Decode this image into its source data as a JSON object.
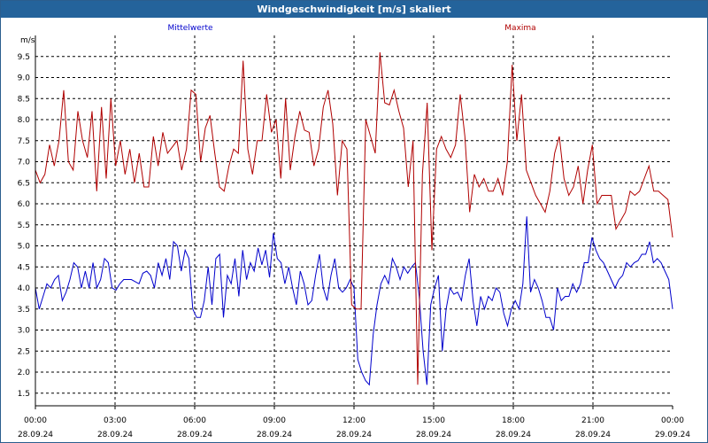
{
  "window": {
    "title": "Windgeschwindigkeit [m/s] skaliert"
  },
  "colors": {
    "titlebar": "#24639b",
    "mittel": "#0000cc",
    "maxima": "#b00000",
    "grid": "#000000"
  },
  "chart_data": {
    "type": "line",
    "title": "Windgeschwindigkeit [m/s] skaliert",
    "ylabel": "m/s",
    "ylim": [
      1.2,
      10.0
    ],
    "yticks": [
      "1.5",
      "2.0",
      "2.5",
      "3.0",
      "3.5",
      "4.0",
      "4.5",
      "5.0",
      "5.5",
      "6.0",
      "6.5",
      "7.0",
      "7.5",
      "8.0",
      "8.5",
      "9.0",
      "9.5"
    ],
    "ytick_values": [
      1.5,
      2.0,
      2.5,
      3.0,
      3.5,
      4.0,
      4.5,
      5.0,
      5.5,
      6.0,
      6.5,
      7.0,
      7.5,
      8.0,
      8.5,
      9.0,
      9.5
    ],
    "xlim_hours": [
      0,
      24
    ],
    "xticks": [
      {
        "hours": 0,
        "time": "00:00",
        "date": "28.09.24"
      },
      {
        "hours": 3,
        "time": "03:00",
        "date": "28.09.24"
      },
      {
        "hours": 6,
        "time": "06:00",
        "date": "28.09.24"
      },
      {
        "hours": 9,
        "time": "09:00",
        "date": "28.09.24"
      },
      {
        "hours": 12,
        "time": "12:00",
        "date": "28.09.24"
      },
      {
        "hours": 15,
        "time": "15:00",
        "date": "28.09.24"
      },
      {
        "hours": 18,
        "time": "18:00",
        "date": "28.09.24"
      },
      {
        "hours": 21,
        "time": "21:00",
        "date": "28.09.24"
      },
      {
        "hours": 24,
        "time": "00:00",
        "date": "29.09.24"
      }
    ],
    "grid": true,
    "series": [
      {
        "name": "Mittelwerte",
        "color": "#0000cc",
        "values": [
          4.0,
          3.5,
          3.8,
          4.1,
          4.0,
          4.2,
          4.3,
          3.7,
          3.9,
          4.2,
          4.6,
          4.5,
          4.0,
          4.4,
          4.0,
          4.6,
          4.0,
          4.2,
          4.7,
          4.6,
          4.0,
          3.95,
          4.1,
          4.2,
          4.2,
          4.2,
          4.15,
          4.1,
          4.35,
          4.4,
          4.3,
          4.0,
          4.6,
          4.3,
          4.7,
          4.2,
          5.1,
          5.0,
          4.4,
          4.9,
          4.7,
          3.5,
          3.3,
          3.3,
          3.7,
          4.5,
          3.6,
          4.7,
          4.8,
          3.3,
          4.3,
          4.1,
          4.7,
          3.8,
          4.9,
          4.2,
          4.6,
          4.4,
          4.95,
          4.55,
          4.9,
          4.25,
          5.3,
          4.7,
          4.6,
          4.1,
          4.5,
          4.0,
          3.6,
          4.4,
          4.1,
          3.6,
          3.7,
          4.3,
          4.8,
          4.0,
          3.7,
          4.3,
          4.7,
          4.0,
          3.9,
          4.0,
          4.2,
          4.0,
          2.3,
          2.0,
          1.8,
          1.7,
          2.9,
          3.6,
          4.1,
          4.3,
          4.1,
          4.7,
          4.5,
          4.2,
          4.5,
          4.35,
          4.5,
          4.6,
          3.8,
          2.5,
          1.7,
          3.6,
          4.0,
          4.3,
          2.5,
          3.5,
          4.0,
          3.85,
          3.9,
          3.7,
          4.3,
          4.7,
          3.7,
          3.1,
          3.8,
          3.5,
          3.8,
          3.7,
          4.0,
          3.9,
          3.4,
          3.1,
          3.5,
          3.7,
          3.5,
          4.1,
          5.7,
          3.9,
          4.2,
          4.0,
          3.7,
          3.3,
          3.3,
          3.0,
          4.0,
          3.7,
          3.8,
          3.8,
          4.1,
          3.9,
          4.1,
          4.6,
          4.6,
          5.2,
          4.9,
          4.7,
          4.6,
          4.4,
          4.2,
          4.0,
          4.2,
          4.3,
          4.6,
          4.5,
          4.6,
          4.65,
          4.8,
          4.8,
          5.1,
          4.6,
          4.7,
          4.6,
          4.4,
          4.2,
          3.5
        ]
      },
      {
        "name": "Maxima",
        "color": "#b00000",
        "values": [
          6.8,
          6.5,
          6.7,
          7.4,
          6.9,
          7.5,
          8.7,
          7.0,
          6.8,
          8.2,
          7.5,
          7.1,
          8.2,
          6.3,
          8.3,
          6.6,
          8.5,
          6.9,
          7.5,
          6.7,
          7.3,
          6.5,
          7.2,
          6.4,
          6.4,
          7.6,
          6.9,
          7.7,
          7.2,
          7.35,
          7.5,
          6.8,
          7.3,
          8.7,
          8.6,
          7.0,
          7.8,
          8.1,
          7.2,
          6.4,
          6.3,
          6.9,
          7.3,
          7.2,
          9.4,
          7.3,
          6.7,
          7.5,
          7.5,
          8.6,
          7.7,
          8.0,
          6.6,
          8.5,
          6.8,
          7.6,
          8.2,
          7.75,
          7.7,
          6.9,
          7.3,
          8.3,
          8.7,
          7.9,
          6.2,
          7.5,
          7.3,
          3.6,
          3.5,
          3.5,
          8.0,
          7.6,
          7.2,
          9.6,
          8.4,
          8.35,
          8.7,
          8.2,
          7.8,
          6.4,
          7.5,
          1.7,
          6.7,
          8.4,
          4.9,
          7.3,
          7.6,
          7.3,
          7.1,
          7.4,
          8.6,
          7.6,
          5.8,
          6.7,
          6.4,
          6.6,
          6.3,
          6.3,
          6.6,
          6.2,
          7.0,
          9.3,
          7.5,
          8.6,
          6.8,
          6.5,
          6.2,
          6.0,
          5.8,
          6.3,
          7.2,
          7.6,
          6.6,
          6.2,
          6.4,
          6.9,
          6.0,
          6.8,
          7.4,
          6.0,
          6.2,
          6.2,
          6.2,
          5.4,
          5.6,
          5.8,
          6.3,
          6.2,
          6.3,
          6.6,
          6.9,
          6.3,
          6.3,
          6.2,
          6.1,
          5.2
        ]
      }
    ],
    "legend": {
      "placement": "top",
      "items": [
        "Mittelwerte",
        "Maxima"
      ]
    }
  }
}
